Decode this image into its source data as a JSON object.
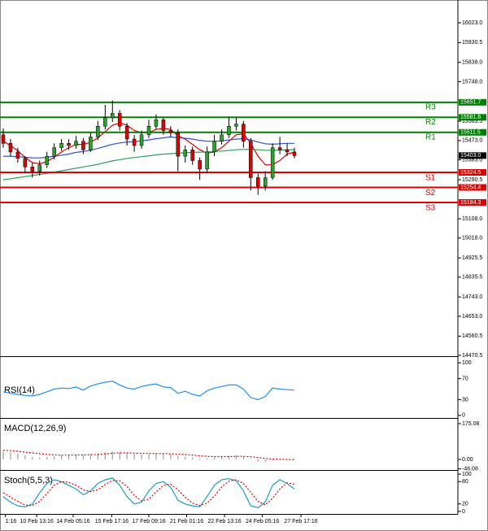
{
  "chart_data": [
    {
      "type": "candlestick",
      "ylim": [
        14466.7,
        16129.3
      ],
      "yticks": [
        {
          "value": 16023.0,
          "label": "16023.0"
        },
        {
          "value": 15930.5,
          "label": "15930.5"
        },
        {
          "value": 15838.0,
          "label": "15838.0"
        },
        {
          "value": 15748.0,
          "label": "15748.0"
        },
        {
          "value": 15563.5,
          "label": "15563.5"
        },
        {
          "value": 15473.0,
          "label": "15473.0"
        },
        {
          "value": 15383.0,
          "label": "15383.0"
        },
        {
          "value": 15290.5,
          "label": "15290.5"
        },
        {
          "value": 15108.0,
          "label": "15108.0"
        },
        {
          "value": 15018.0,
          "label": "15018.0"
        },
        {
          "value": 14925.5,
          "label": "14925.5"
        },
        {
          "value": 14835.5,
          "label": "14835.5"
        },
        {
          "value": 14743.0,
          "label": "14743.0"
        },
        {
          "value": 14653.0,
          "label": "14653.0"
        },
        {
          "value": 14560.5,
          "label": "14560.5"
        },
        {
          "value": 14470.5,
          "label": "14470.5"
        }
      ],
      "xticks": [
        {
          "value": 0.3,
          "label": "1:16"
        },
        {
          "value": 4.6,
          "label": "10 Feb 13:16"
        },
        {
          "value": 9.6,
          "label": "14 Feb 05:16"
        },
        {
          "value": 14.9,
          "label": "15 Feb 17:16"
        },
        {
          "value": 20,
          "label": "17 Feb 09:16"
        },
        {
          "value": 25.2,
          "label": "21 Feb 01:16"
        },
        {
          "value": 30.4,
          "label": "22 Feb 13:16"
        },
        {
          "value": 35.6,
          "label": "24 Feb 05:16"
        },
        {
          "value": 40.9,
          "label": "27 Feb 17:16"
        }
      ],
      "up_color": "#2ca02c",
      "down_color": "#e00000",
      "open": [
        15500,
        15460,
        15420,
        15390,
        15350,
        15330,
        15360,
        15400,
        15440,
        15460,
        15450,
        15470,
        15430,
        15490,
        15540,
        15580,
        15600,
        15540,
        15480,
        15450,
        15500,
        15540,
        15570,
        15520,
        15510,
        15400,
        15430,
        15380,
        15340,
        15420,
        15470,
        15500,
        15540,
        15550,
        15470,
        15300,
        15260,
        15300,
        15440,
        15430,
        15420
      ],
      "high": [
        15530,
        15480,
        15440,
        15400,
        15370,
        15380,
        15420,
        15460,
        15480,
        15480,
        15495,
        15485,
        15510,
        15565,
        15640,
        15660,
        15615,
        15555,
        15500,
        15520,
        15570,
        15595,
        15580,
        15540,
        15525,
        15450,
        15445,
        15395,
        15445,
        15500,
        15525,
        15585,
        15580,
        15565,
        15485,
        15320,
        15330,
        15460,
        15490,
        15460,
        15440
      ],
      "low": [
        15440,
        15400,
        15370,
        15320,
        15300,
        15310,
        15345,
        15385,
        15425,
        15430,
        15435,
        15410,
        15420,
        15475,
        15525,
        15560,
        15520,
        15450,
        15420,
        15435,
        15485,
        15525,
        15500,
        15490,
        15330,
        15370,
        15360,
        15290,
        15320,
        15400,
        15455,
        15485,
        15520,
        15440,
        15240,
        15220,
        15240,
        15290,
        15410,
        15400,
        15390
      ],
      "close": [
        15460,
        15420,
        15390,
        15350,
        15330,
        15360,
        15400,
        15440,
        15460,
        15450,
        15470,
        15430,
        15490,
        15540,
        15580,
        15600,
        15540,
        15480,
        15450,
        15500,
        15540,
        15570,
        15520,
        15510,
        15400,
        15430,
        15380,
        15340,
        15420,
        15470,
        15500,
        15540,
        15550,
        15470,
        15300,
        15260,
        15300,
        15440,
        15430,
        15420,
        15403
      ],
      "series": [
        {
          "color": "#e00000",
          "values": [
            15470,
            15450,
            15425,
            15395,
            15370,
            15365,
            15375,
            15395,
            15420,
            15440,
            15455,
            15455,
            15465,
            15485,
            15515,
            15545,
            15555,
            15545,
            15520,
            15510,
            15510,
            15525,
            15530,
            15525,
            15495,
            15480,
            15455,
            15430,
            15415,
            15420,
            15440,
            15470,
            15500,
            15505,
            15460,
            15400,
            15360,
            15360,
            15380,
            15410,
            15420
          ]
        },
        {
          "color": "#3050d0",
          "values": [
            15400,
            15400,
            15398,
            15395,
            15392,
            15392,
            15395,
            15400,
            15405,
            15410,
            15418,
            15422,
            15428,
            15436,
            15446,
            15456,
            15462,
            15466,
            15468,
            15472,
            15476,
            15482,
            15486,
            15490,
            15486,
            15484,
            15480,
            15474,
            15470,
            15470,
            15472,
            15476,
            15480,
            15482,
            15476,
            15466,
            15458,
            15456,
            15458,
            15460,
            15460
          ]
        },
        {
          "color": "#2ca05a",
          "values": [
            15290,
            15295,
            15300,
            15305,
            15310,
            15315,
            15320,
            15326,
            15332,
            15338,
            15344,
            15350,
            15356,
            15362,
            15370,
            15378,
            15384,
            15390,
            15394,
            15398,
            15402,
            15406,
            15410,
            15412,
            15414,
            15416,
            15418,
            15419,
            15420,
            15422,
            15424,
            15427,
            15430,
            15432,
            15432,
            15430,
            15428,
            15428,
            15429,
            15430,
            15431
          ]
        }
      ],
      "levels": [
        {
          "name": "R3",
          "value": 15651.7,
          "label": "15651.7",
          "color": "#008000"
        },
        {
          "name": "R2",
          "value": 15581.6,
          "label": "15581.6",
          "color": "#008000"
        },
        {
          "name": "R1",
          "value": 15511.5,
          "label": "15511.5",
          "color": "#008000"
        },
        {
          "name": "S1",
          "value": 15324.5,
          "label": "15324.5",
          "color": "#e00000"
        },
        {
          "name": "S2",
          "value": 15254.4,
          "label": "15254.4",
          "color": "#e00000"
        },
        {
          "name": "S3",
          "value": 15184.3,
          "label": "15184.3",
          "color": "#e00000"
        }
      ],
      "last_price": {
        "value": 15403.0,
        "label": "15403.0"
      }
    },
    {
      "type": "line",
      "title": "RSI(14)",
      "ylim": [
        -4.8,
        111.1
      ],
      "yticks": [
        100,
        70,
        30,
        0
      ],
      "series": [
        {
          "color": "#1e90ff",
          "values": [
            45,
            42,
            40,
            38,
            37,
            40,
            45,
            50,
            52,
            51,
            54,
            48,
            56,
            60,
            63,
            65,
            58,
            52,
            50,
            55,
            58,
            60,
            54,
            53,
            42,
            46,
            40,
            37,
            47,
            52,
            55,
            58,
            58,
            50,
            34,
            30,
            36,
            52,
            50,
            49,
            48
          ]
        }
      ]
    },
    {
      "type": "macd",
      "title": "MACD(12,26,9)",
      "ylim": [
        -51.7,
        199.0
      ],
      "yticks": [
        {
          "value": 175.08,
          "label": "175.08"
        },
        {
          "value": 0,
          "label": "0.00"
        },
        {
          "value": -46.08,
          "label": "-46.08"
        }
      ],
      "histogram": {
        "color": "#a0a0a0",
        "values": [
          40,
          35,
          28,
          20,
          12,
          10,
          12,
          16,
          20,
          22,
          24,
          22,
          25,
          30,
          36,
          40,
          38,
          32,
          26,
          25,
          27,
          30,
          28,
          26,
          18,
          15,
          10,
          5,
          6,
          10,
          14,
          18,
          20,
          16,
          2,
          -10,
          -14,
          -6,
          -2,
          0,
          -1
        ]
      },
      "series": [
        {
          "color": "#e00000",
          "dashed": true,
          "values": [
            45,
            43,
            40,
            36,
            32,
            28,
            25,
            22,
            21,
            21,
            22,
            22,
            23,
            24,
            27,
            30,
            32,
            32,
            31,
            30,
            29,
            29,
            29,
            28,
            26,
            24,
            21,
            18,
            15,
            14,
            14,
            14,
            15,
            15,
            13,
            9,
            5,
            2,
            1,
            0,
            -1
          ]
        }
      ]
    },
    {
      "type": "line",
      "title": "Stoch(5,5,3)",
      "ylim": [
        -6.7,
        108.9
      ],
      "yticks": [
        100,
        80,
        20,
        0
      ],
      "series": [
        {
          "color": "#1ca0c8",
          "values": [
            40,
            25,
            15,
            12,
            20,
            50,
            75,
            85,
            80,
            70,
            60,
            45,
            55,
            75,
            85,
            90,
            70,
            40,
            20,
            25,
            55,
            75,
            80,
            65,
            30,
            20,
            15,
            12,
            40,
            70,
            85,
            88,
            82,
            55,
            15,
            10,
            25,
            70,
            85,
            75,
            60
          ]
        },
        {
          "color": "#e00000",
          "dashed": true,
          "values": [
            50,
            38,
            27,
            17,
            16,
            27,
            48,
            70,
            80,
            78,
            70,
            58,
            53,
            58,
            72,
            83,
            82,
            67,
            43,
            28,
            33,
            52,
            70,
            73,
            58,
            38,
            22,
            16,
            22,
            41,
            65,
            81,
            85,
            75,
            51,
            27,
            17,
            35,
            60,
            77,
            73
          ]
        }
      ]
    }
  ]
}
